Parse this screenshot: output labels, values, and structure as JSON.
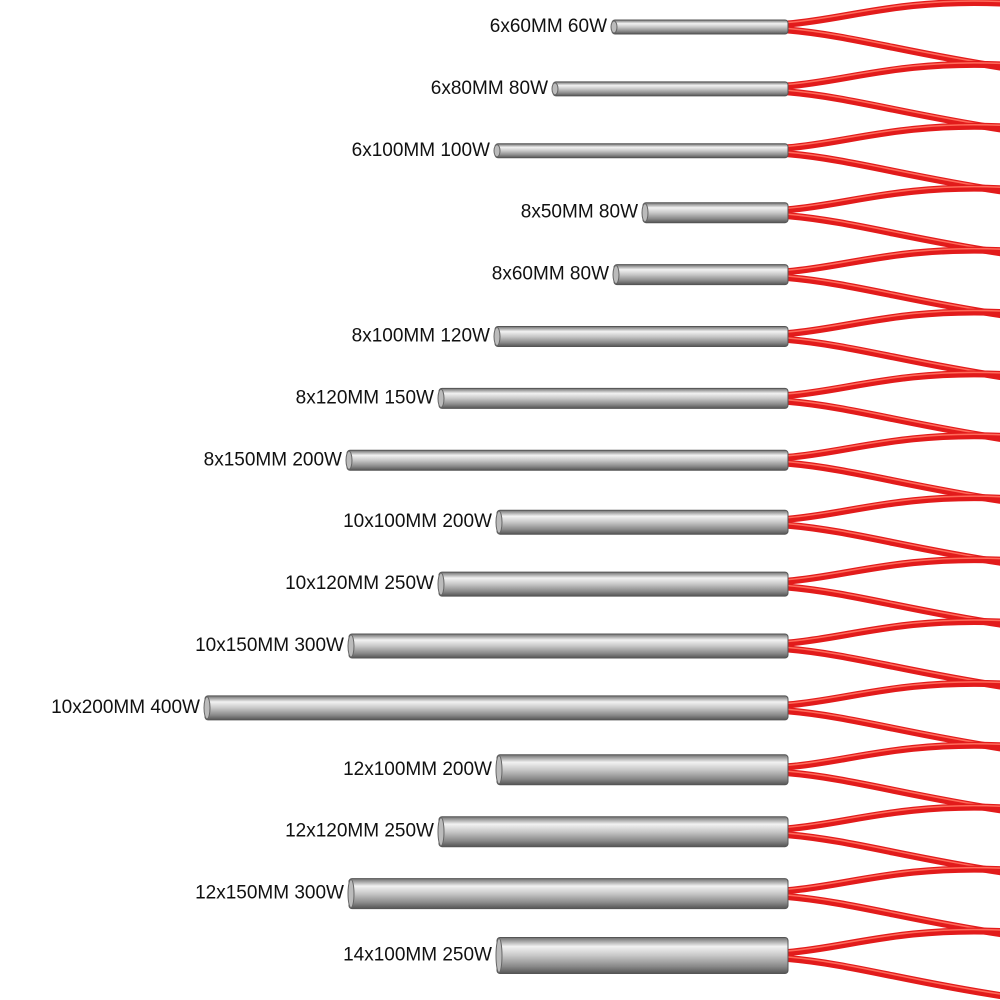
{
  "items": [
    {
      "label": "6x60MM 60W"
    },
    {
      "label": "6x80MM 80W"
    },
    {
      "label": "6x100MM 100W"
    },
    {
      "label": "8x50MM 80W"
    },
    {
      "label": "8x60MM 80W"
    },
    {
      "label": "8x100MM 120W"
    },
    {
      "label": "8x120MM 150W"
    },
    {
      "label": "8x150MM 200W"
    },
    {
      "label": "10x100MM 200W"
    },
    {
      "label": "10x120MM 250W"
    },
    {
      "label": "10x150MM 300W"
    },
    {
      "label": "10x200MM 400W"
    },
    {
      "label": "12x100MM 200W"
    },
    {
      "label": "12x120MM 250W"
    },
    {
      "label": "12x150MM 300W"
    },
    {
      "label": "14x100MM 250W"
    }
  ]
}
